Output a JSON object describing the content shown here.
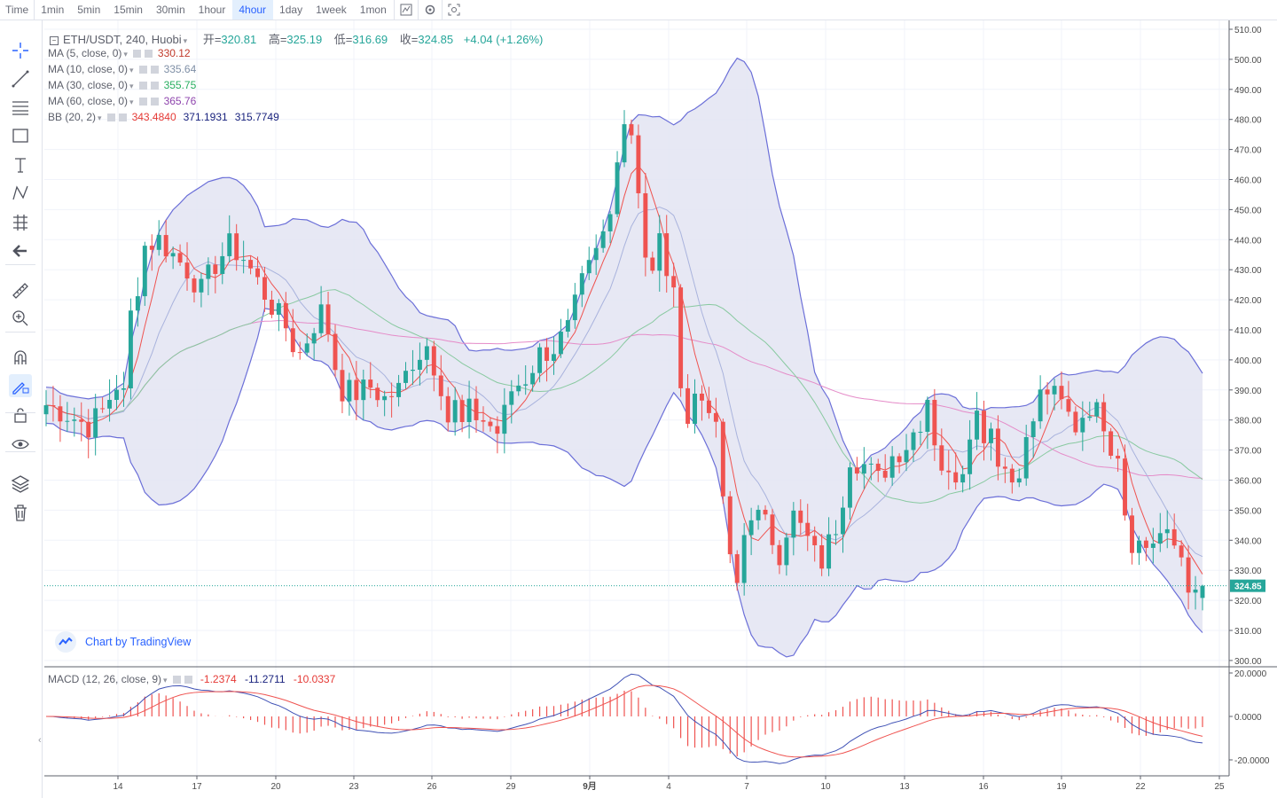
{
  "toolbar": {
    "intervals": [
      {
        "label": "Time"
      },
      {
        "label": "1min"
      },
      {
        "label": "5min"
      },
      {
        "label": "15min"
      },
      {
        "label": "30min"
      },
      {
        "label": "1hour"
      },
      {
        "label": "4hour",
        "active": true
      },
      {
        "label": "1day"
      },
      {
        "label": "1week"
      },
      {
        "label": "1mon"
      }
    ],
    "icons": [
      "indicators-icon",
      "settings-icon",
      "screenshot-icon"
    ]
  },
  "sidebar": {
    "tools": [
      "crosshair-icon",
      "trend-line-icon",
      "fib-lines-icon",
      "rectangle-icon",
      "text-icon",
      "pattern-icon",
      "prediction-icon",
      "back-arrow-icon",
      "ruler-icon",
      "zoom-in-icon",
      "magnet-icon",
      "stay-in-drawing-icon",
      "lock-icon",
      "eye-icon",
      "layers-icon",
      "trash-icon"
    ]
  },
  "main_legend": {
    "symbol": "ETH/USDT, 240, Huobi",
    "open_label": "开=",
    "open": "320.81",
    "high_label": "高=",
    "high": "325.19",
    "low_label": "低=",
    "low": "316.69",
    "close_label": "收=",
    "close": "324.85",
    "change": "+4.04 (+1.26%)"
  },
  "indicators": [
    {
      "name": "MA (5, close, 0)",
      "values": [
        "330.12"
      ],
      "colors": [
        "#c0392b"
      ]
    },
    {
      "name": "MA (10, close, 0)",
      "values": [
        "335.64"
      ],
      "colors": [
        "#7f8fa6"
      ]
    },
    {
      "name": "MA (30, close, 0)",
      "values": [
        "355.75"
      ],
      "colors": [
        "#27ae60"
      ]
    },
    {
      "name": "MA (60, close, 0)",
      "values": [
        "365.76"
      ],
      "colors": [
        "#8e44ad"
      ]
    },
    {
      "name": "BB (20, 2)",
      "values": [
        "343.4840",
        "371.1931",
        "315.7749"
      ],
      "colors": [
        "#e53935",
        "#1a237e",
        "#1a237e"
      ]
    }
  ],
  "macd_legend": {
    "name": "MACD (12, 26, close, 9)",
    "values": [
      "-1.2374",
      "-11.2711",
      "-10.0337"
    ]
  },
  "branding": {
    "text": "Chart by TradingView"
  },
  "colors": {
    "up": "#26a69a",
    "down": "#ef5350",
    "bb_fill": "#e3e4f2",
    "bb_line": "#6b6fd8",
    "ma5": "#ef5350",
    "ma10": "#a9b3dd",
    "ma30": "#88c9a0",
    "ma60": "#e58bc8",
    "macd": "#3f51b5",
    "signal": "#ef5350",
    "price_tag": "#26a69a"
  },
  "chart_data": {
    "type": "candlestick",
    "price_axis": {
      "min": 300,
      "max": 510,
      "ticks": [
        "510.00",
        "500.00",
        "490.00",
        "480.00",
        "470.00",
        "460.00",
        "450.00",
        "440.00",
        "430.00",
        "420.00",
        "410.00",
        "400.00",
        "390.00",
        "380.00",
        "370.00",
        "360.00",
        "350.00",
        "340.00",
        "330.00",
        "320.00",
        "310.00",
        "300.00"
      ]
    },
    "last_price": {
      "value": 324.85,
      "label": "324.85"
    },
    "x_ticks": [
      "14",
      "17",
      "20",
      "23",
      "26",
      "29",
      "9月",
      "4",
      "7",
      "10",
      "13",
      "16",
      "19",
      "22",
      "25"
    ],
    "macd_axis": {
      "min": -25,
      "max": 22,
      "ticks": [
        "20.0000",
        "0.0000",
        "-20.0000"
      ]
    },
    "close_path": [
      [
        0,
        385
      ],
      [
        3,
        382
      ],
      [
        6,
        378
      ],
      [
        8,
        383
      ],
      [
        10,
        392
      ],
      [
        11,
        388
      ],
      [
        12,
        415
      ],
      [
        13,
        425
      ],
      [
        14,
        438
      ],
      [
        16,
        440
      ],
      [
        18,
        435
      ],
      [
        20,
        430
      ],
      [
        22,
        423
      ],
      [
        24,
        432
      ],
      [
        26,
        438
      ],
      [
        28,
        434
      ],
      [
        30,
        426
      ],
      [
        32,
        418
      ],
      [
        34,
        411
      ],
      [
        35,
        405
      ],
      [
        36,
        402
      ],
      [
        38,
        412
      ],
      [
        39,
        416
      ],
      [
        40,
        410
      ],
      [
        41,
        398
      ],
      [
        42,
        390
      ],
      [
        44,
        389
      ],
      [
        46,
        391
      ],
      [
        48,
        387
      ],
      [
        50,
        390
      ],
      [
        52,
        400
      ],
      [
        54,
        405
      ],
      [
        56,
        392
      ],
      [
        57,
        380
      ],
      [
        58,
        385
      ],
      [
        59,
        378
      ],
      [
        60,
        383
      ],
      [
        62,
        380
      ],
      [
        64,
        376
      ],
      [
        65,
        382
      ],
      [
        66,
        390
      ],
      [
        68,
        394
      ],
      [
        70,
        402
      ],
      [
        72,
        404
      ],
      [
        74,
        410
      ],
      [
        76,
        425
      ],
      [
        78,
        435
      ],
      [
        80,
        448
      ],
      [
        81,
        470
      ],
      [
        82,
        480
      ],
      [
        83,
        476
      ],
      [
        84,
        458
      ],
      [
        85,
        435
      ],
      [
        86,
        428
      ],
      [
        87,
        440
      ],
      [
        88,
        430
      ],
      [
        89,
        420
      ],
      [
        90,
        395
      ],
      [
        91,
        380
      ],
      [
        92,
        388
      ],
      [
        94,
        386
      ],
      [
        95,
        375
      ],
      [
        96,
        355
      ],
      [
        97,
        332
      ],
      [
        98,
        325
      ],
      [
        99,
        342
      ],
      [
        100,
        350
      ],
      [
        102,
        345
      ],
      [
        104,
        336
      ],
      [
        105,
        344
      ],
      [
        106,
        348
      ],
      [
        108,
        340
      ],
      [
        109,
        335
      ],
      [
        110,
        333
      ],
      [
        112,
        345
      ],
      [
        113,
        355
      ],
      [
        114,
        368
      ],
      [
        116,
        365
      ],
      [
        118,
        360
      ],
      [
        120,
        368
      ],
      [
        122,
        372
      ],
      [
        124,
        380
      ],
      [
        125,
        388
      ],
      [
        126,
        374
      ],
      [
        127,
        365
      ],
      [
        128,
        360
      ],
      [
        130,
        365
      ],
      [
        131,
        378
      ],
      [
        132,
        382
      ],
      [
        133,
        376
      ],
      [
        134,
        378
      ],
      [
        135,
        368
      ],
      [
        136,
        364
      ],
      [
        137,
        360
      ],
      [
        138,
        365
      ],
      [
        139,
        372
      ],
      [
        140,
        380
      ],
      [
        141,
        388
      ],
      [
        142,
        390
      ],
      [
        144,
        385
      ],
      [
        146,
        378
      ],
      [
        147,
        382
      ],
      [
        148,
        385
      ],
      [
        150,
        380
      ],
      [
        151,
        372
      ],
      [
        152,
        370
      ],
      [
        153,
        350
      ],
      [
        154,
        340
      ],
      [
        156,
        338
      ],
      [
        158,
        342
      ],
      [
        160,
        338
      ],
      [
        161,
        335
      ],
      [
        162,
        326
      ],
      [
        163,
        320
      ],
      [
        164,
        324.85
      ]
    ],
    "visible_candles": 165
  }
}
